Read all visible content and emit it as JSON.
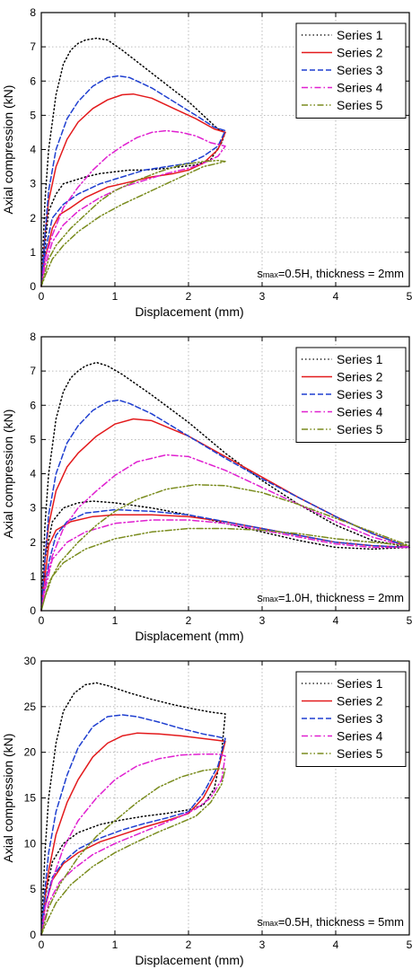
{
  "chart_data": [
    {
      "type": "line",
      "xlabel": "Displacement (mm)",
      "ylabel": "Axial compression (kN)",
      "xlim": [
        0,
        5
      ],
      "ylim": [
        0,
        8
      ],
      "xticks": [
        "0",
        "1",
        "2",
        "3",
        "4",
        "5"
      ],
      "yticks": [
        "0",
        "1",
        "2",
        "3",
        "4",
        "5",
        "6",
        "7",
        "8"
      ],
      "grid": true,
      "legend_position": "top-right",
      "annotation_prefix": "s",
      "annotation_sub": "max",
      "annotation_rest": "=0.5H, thickness = 2mm",
      "series": [
        {
          "name": "Series 1",
          "color": "#000000",
          "dash": "dot",
          "x": [
            0,
            0.05,
            0.1,
            0.2,
            0.3,
            0.4,
            0.5,
            0.6,
            0.75,
            0.9,
            1.1,
            1.4,
            1.7,
            2.0,
            2.2,
            2.4,
            2.5,
            2.45,
            2.3,
            2.1,
            1.9,
            1.7,
            1.4,
            1.2,
            1.0,
            0.8,
            0.6,
            0.45,
            0.3,
            0.2,
            0.1,
            0.05,
            0
          ],
          "y": [
            0,
            2.5,
            4.0,
            5.6,
            6.5,
            6.9,
            7.1,
            7.2,
            7.25,
            7.2,
            6.9,
            6.4,
            5.9,
            5.4,
            5.0,
            4.6,
            4.5,
            4.2,
            3.7,
            3.55,
            3.5,
            3.45,
            3.4,
            3.4,
            3.35,
            3.3,
            3.2,
            3.1,
            3.0,
            2.7,
            2.2,
            1.2,
            0
          ]
        },
        {
          "name": "Series 2",
          "color": "#e31a1c",
          "dash": "solid",
          "x": [
            0,
            0.05,
            0.1,
            0.2,
            0.35,
            0.5,
            0.7,
            0.9,
            1.1,
            1.25,
            1.5,
            1.8,
            2.1,
            2.35,
            2.5,
            2.4,
            2.2,
            2.0,
            1.8,
            1.5,
            1.2,
            0.9,
            0.6,
            0.4,
            0.25,
            0.15,
            0.05,
            0
          ],
          "y": [
            0,
            1.5,
            2.5,
            3.5,
            4.3,
            4.8,
            5.2,
            5.45,
            5.6,
            5.62,
            5.5,
            5.2,
            4.9,
            4.6,
            4.5,
            4.0,
            3.6,
            3.4,
            3.3,
            3.2,
            3.05,
            2.9,
            2.6,
            2.3,
            2.1,
            1.7,
            0.8,
            0
          ]
        },
        {
          "name": "Series 3",
          "color": "#1f3fd0",
          "dash": "dash",
          "x": [
            0,
            0.05,
            0.1,
            0.2,
            0.35,
            0.5,
            0.7,
            0.9,
            1.05,
            1.2,
            1.5,
            1.8,
            2.1,
            2.35,
            2.5,
            2.4,
            2.2,
            2.0,
            1.7,
            1.4,
            1.1,
            0.8,
            0.5,
            0.3,
            0.15,
            0.05,
            0
          ],
          "y": [
            0,
            1.5,
            2.8,
            4.0,
            4.9,
            5.4,
            5.85,
            6.1,
            6.15,
            6.1,
            5.8,
            5.4,
            5.0,
            4.65,
            4.55,
            4.1,
            3.8,
            3.6,
            3.5,
            3.4,
            3.2,
            3.0,
            2.7,
            2.4,
            2.0,
            1.0,
            0
          ]
        },
        {
          "name": "Series 4",
          "color": "#e020d0",
          "dash": "dashdot",
          "x": [
            0,
            0.05,
            0.15,
            0.3,
            0.5,
            0.7,
            0.9,
            1.1,
            1.3,
            1.5,
            1.7,
            1.9,
            2.1,
            2.3,
            2.5,
            2.4,
            2.2,
            2.0,
            1.7,
            1.4,
            1.1,
            0.8,
            0.5,
            0.3,
            0.15,
            0.05,
            0
          ],
          "y": [
            0,
            0.8,
            1.5,
            2.3,
            2.9,
            3.4,
            3.8,
            4.1,
            4.35,
            4.5,
            4.55,
            4.5,
            4.4,
            4.2,
            4.1,
            3.8,
            3.6,
            3.45,
            3.3,
            3.1,
            2.9,
            2.6,
            2.2,
            1.8,
            1.3,
            0.6,
            0
          ]
        },
        {
          "name": "Series 5",
          "color": "#7a8c1e",
          "dash": "dashdotdot",
          "x": [
            0,
            0.1,
            0.2,
            0.4,
            0.6,
            0.8,
            1.0,
            1.3,
            1.6,
            1.9,
            2.2,
            2.4,
            2.5,
            2.4,
            2.2,
            2.0,
            1.7,
            1.4,
            1.1,
            0.8,
            0.5,
            0.3,
            0.15,
            0.05,
            0
          ],
          "y": [
            0,
            0.8,
            1.2,
            1.7,
            2.1,
            2.5,
            2.8,
            3.1,
            3.35,
            3.55,
            3.65,
            3.68,
            3.65,
            3.6,
            3.5,
            3.3,
            3.0,
            2.7,
            2.4,
            2.05,
            1.6,
            1.2,
            0.8,
            0.3,
            0
          ]
        }
      ]
    },
    {
      "type": "line",
      "xlabel": "Displacement (mm)",
      "ylabel": "Axial compression (kN)",
      "xlim": [
        0,
        5
      ],
      "ylim": [
        0,
        8
      ],
      "xticks": [
        "0",
        "1",
        "2",
        "3",
        "4",
        "5"
      ],
      "yticks": [
        "0",
        "1",
        "2",
        "3",
        "4",
        "5",
        "6",
        "7",
        "8"
      ],
      "grid": true,
      "legend_position": "top-right",
      "annotation_prefix": "s",
      "annotation_sub": "max",
      "annotation_rest": "=1.0H, thickness = 2mm",
      "series": [
        {
          "name": "Series 1",
          "color": "#000000",
          "dash": "dot",
          "x": [
            0,
            0.05,
            0.1,
            0.2,
            0.3,
            0.4,
            0.5,
            0.6,
            0.75,
            0.9,
            1.1,
            1.5,
            2.0,
            2.5,
            3.0,
            3.5,
            4.0,
            4.5,
            5.0,
            4.5,
            4.0,
            3.5,
            3.0,
            2.5,
            2.0,
            1.5,
            1.0,
            0.7,
            0.5,
            0.3,
            0.15,
            0.05,
            0
          ],
          "y": [
            0,
            2.5,
            4.0,
            5.6,
            6.4,
            6.8,
            7.0,
            7.15,
            7.25,
            7.15,
            6.9,
            6.3,
            5.5,
            4.6,
            3.8,
            3.1,
            2.5,
            2.05,
            1.85,
            1.8,
            1.85,
            2.05,
            2.3,
            2.55,
            2.8,
            3.0,
            3.15,
            3.2,
            3.15,
            3.0,
            2.6,
            1.5,
            0
          ]
        },
        {
          "name": "Series 2",
          "color": "#e31a1c",
          "dash": "solid",
          "x": [
            0,
            0.05,
            0.1,
            0.2,
            0.35,
            0.5,
            0.75,
            1.0,
            1.25,
            1.5,
            2.0,
            2.5,
            3.0,
            3.5,
            4.0,
            4.5,
            5.0,
            4.5,
            4.0,
            3.5,
            3.0,
            2.5,
            2.0,
            1.5,
            1.0,
            0.7,
            0.4,
            0.2,
            0.1,
            0.05,
            0
          ],
          "y": [
            0,
            1.5,
            2.5,
            3.5,
            4.2,
            4.6,
            5.1,
            5.45,
            5.6,
            5.55,
            5.1,
            4.5,
            3.9,
            3.3,
            2.75,
            2.25,
            1.85,
            1.9,
            2.0,
            2.2,
            2.4,
            2.6,
            2.75,
            2.8,
            2.8,
            2.75,
            2.6,
            2.35,
            1.9,
            1.0,
            0
          ]
        },
        {
          "name": "Series 3",
          "color": "#1f3fd0",
          "dash": "dash",
          "x": [
            0,
            0.05,
            0.1,
            0.2,
            0.35,
            0.5,
            0.7,
            0.9,
            1.05,
            1.2,
            1.5,
            2.0,
            2.5,
            3.0,
            3.5,
            4.0,
            4.5,
            5.0,
            4.5,
            4.0,
            3.5,
            3.0,
            2.5,
            2.0,
            1.5,
            1.0,
            0.6,
            0.35,
            0.2,
            0.1,
            0
          ],
          "y": [
            0,
            1.5,
            2.8,
            4.0,
            4.9,
            5.4,
            5.85,
            6.1,
            6.15,
            6.05,
            5.75,
            5.1,
            4.45,
            3.85,
            3.3,
            2.75,
            2.25,
            1.85,
            1.9,
            2.0,
            2.2,
            2.4,
            2.6,
            2.8,
            2.9,
            2.95,
            2.85,
            2.6,
            2.2,
            1.4,
            0
          ]
        },
        {
          "name": "Series 4",
          "color": "#e020d0",
          "dash": "dashdot",
          "x": [
            0,
            0.05,
            0.15,
            0.3,
            0.5,
            0.75,
            1.0,
            1.3,
            1.7,
            2.0,
            2.5,
            3.0,
            3.5,
            4.0,
            4.5,
            5.0,
            4.5,
            4.0,
            3.5,
            3.0,
            2.5,
            2.0,
            1.5,
            1.0,
            0.6,
            0.35,
            0.15,
            0.05,
            0
          ],
          "y": [
            0,
            0.8,
            1.6,
            2.4,
            3.0,
            3.5,
            3.95,
            4.35,
            4.55,
            4.5,
            4.1,
            3.6,
            3.1,
            2.6,
            2.15,
            1.85,
            1.85,
            1.95,
            2.15,
            2.35,
            2.55,
            2.65,
            2.65,
            2.55,
            2.3,
            2.0,
            1.5,
            0.6,
            0
          ]
        },
        {
          "name": "Series 5",
          "color": "#7a8c1e",
          "dash": "dashdotdot",
          "x": [
            0,
            0.1,
            0.25,
            0.5,
            0.75,
            1.0,
            1.3,
            1.7,
            2.1,
            2.5,
            3.0,
            3.5,
            4.0,
            4.5,
            5.0,
            4.5,
            4.0,
            3.5,
            3.0,
            2.5,
            2.0,
            1.5,
            1.0,
            0.6,
            0.3,
            0.15,
            0.05,
            0
          ],
          "y": [
            0,
            0.8,
            1.4,
            2.0,
            2.5,
            2.9,
            3.25,
            3.55,
            3.68,
            3.65,
            3.45,
            3.1,
            2.7,
            2.3,
            1.9,
            2.0,
            2.1,
            2.25,
            2.35,
            2.4,
            2.4,
            2.3,
            2.1,
            1.8,
            1.4,
            1.0,
            0.4,
            0
          ]
        }
      ]
    },
    {
      "type": "line",
      "xlabel": "Displacement (mm)",
      "ylabel": "Axial compression (kN)",
      "xlim": [
        0,
        5
      ],
      "ylim": [
        0,
        30
      ],
      "xticks": [
        "0",
        "1",
        "2",
        "3",
        "4",
        "5"
      ],
      "yticks": [
        "0",
        "5",
        "10",
        "15",
        "20",
        "25",
        "30"
      ],
      "grid": true,
      "legend_position": "top-right",
      "annotation_prefix": "s",
      "annotation_sub": "max",
      "annotation_rest": "=0.5H, thickness = 5mm",
      "series": [
        {
          "name": "Series 1",
          "color": "#000000",
          "dash": "dot",
          "x": [
            0,
            0.05,
            0.1,
            0.2,
            0.3,
            0.45,
            0.6,
            0.75,
            0.9,
            1.2,
            1.5,
            1.8,
            2.1,
            2.3,
            2.5,
            2.45,
            2.35,
            2.2,
            2.0,
            1.7,
            1.4,
            1.1,
            0.8,
            0.5,
            0.3,
            0.15,
            0.05,
            0
          ],
          "y": [
            0,
            9,
            15,
            21,
            24.5,
            26.5,
            27.4,
            27.6,
            27.3,
            26.5,
            25.8,
            25.2,
            24.7,
            24.4,
            24.2,
            20,
            16,
            14.2,
            13.7,
            13.3,
            13.0,
            12.6,
            12.1,
            11.2,
            10.0,
            8.0,
            4.0,
            0
          ]
        },
        {
          "name": "Series 2",
          "color": "#e31a1c",
          "dash": "solid",
          "x": [
            0,
            0.05,
            0.1,
            0.2,
            0.35,
            0.5,
            0.7,
            0.9,
            1.1,
            1.3,
            1.6,
            1.9,
            2.2,
            2.4,
            2.5,
            2.4,
            2.2,
            2.0,
            1.7,
            1.4,
            1.1,
            0.8,
            0.5,
            0.3,
            0.15,
            0.05,
            0
          ],
          "y": [
            0,
            4,
            7,
            11,
            14.5,
            17,
            19.5,
            21,
            21.8,
            22.1,
            22.0,
            21.8,
            21.5,
            21.3,
            21.2,
            18.0,
            15.0,
            13.3,
            12.5,
            11.8,
            11.0,
            10.2,
            9.0,
            7.8,
            6.0,
            3.0,
            0
          ]
        },
        {
          "name": "Series 3",
          "color": "#1f3fd0",
          "dash": "dash",
          "x": [
            0,
            0.05,
            0.1,
            0.2,
            0.35,
            0.5,
            0.7,
            0.9,
            1.1,
            1.3,
            1.6,
            1.9,
            2.2,
            2.4,
            2.5,
            2.4,
            2.2,
            2.0,
            1.7,
            1.4,
            1.1,
            0.8,
            0.5,
            0.3,
            0.15,
            0.05,
            0
          ],
          "y": [
            0,
            5,
            9,
            13.5,
            17.5,
            20.5,
            22.8,
            23.9,
            24.1,
            23.9,
            23.3,
            22.6,
            22.0,
            21.7,
            21.5,
            18.5,
            15.5,
            13.5,
            12.8,
            12.2,
            11.5,
            10.6,
            9.4,
            8.0,
            6.3,
            3.2,
            0
          ]
        },
        {
          "name": "Series 4",
          "color": "#e020d0",
          "dash": "dashdot",
          "x": [
            0,
            0.05,
            0.15,
            0.3,
            0.5,
            0.75,
            1.0,
            1.3,
            1.6,
            1.9,
            2.2,
            2.4,
            2.5,
            2.45,
            2.3,
            2.1,
            1.9,
            1.6,
            1.3,
            1.0,
            0.7,
            0.45,
            0.25,
            0.1,
            0
          ],
          "y": [
            0,
            3,
            6,
            9.5,
            12.5,
            15.0,
            17.0,
            18.5,
            19.3,
            19.7,
            19.8,
            19.8,
            19.6,
            17.0,
            15.0,
            13.8,
            13.0,
            12.0,
            11.0,
            10.0,
            8.8,
            7.3,
            5.8,
            3.5,
            0
          ]
        },
        {
          "name": "Series 5",
          "color": "#7a8c1e",
          "dash": "dashdotdot",
          "x": [
            0,
            0.1,
            0.25,
            0.5,
            0.75,
            1.0,
            1.3,
            1.6,
            1.9,
            2.2,
            2.4,
            2.5,
            2.45,
            2.3,
            2.1,
            1.9,
            1.6,
            1.3,
            1.0,
            0.7,
            0.4,
            0.2,
            0.05,
            0
          ],
          "y": [
            0,
            3,
            5.5,
            8.5,
            10.8,
            12.5,
            14.5,
            16.2,
            17.3,
            18.0,
            18.2,
            18.2,
            16.5,
            14.5,
            13.0,
            12.3,
            11.3,
            10.2,
            9.0,
            7.5,
            5.5,
            3.5,
            1.0,
            0
          ]
        }
      ]
    }
  ]
}
